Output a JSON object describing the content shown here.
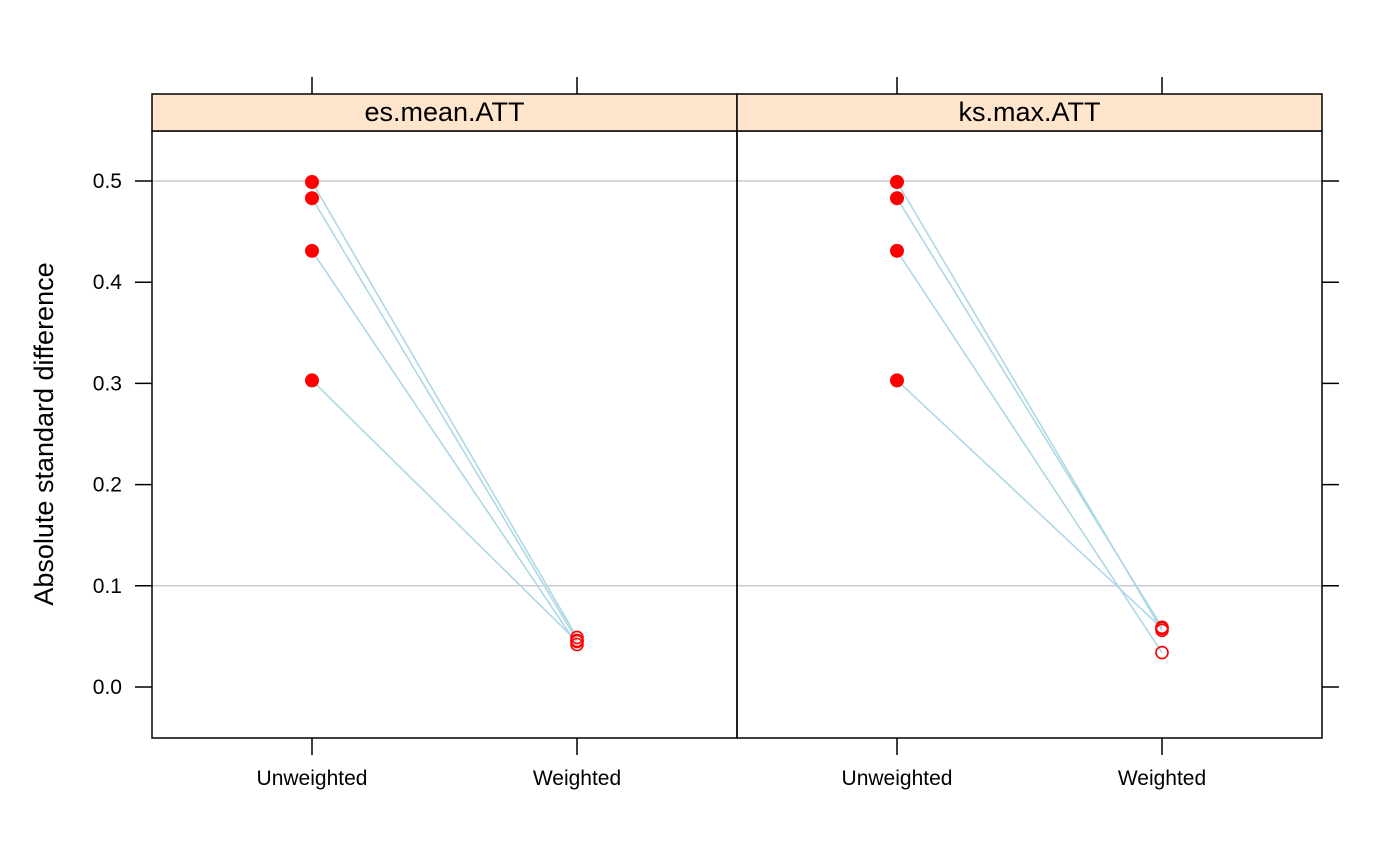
{
  "chart_data": {
    "type": "scatter",
    "ylabel": "Absolute standard difference",
    "xlabel": "",
    "categories": [
      "Unweighted",
      "Weighted"
    ],
    "ylim": [
      -0.05,
      0.55
    ],
    "yticks": [
      "0.0",
      "0.1",
      "0.2",
      "0.3",
      "0.4",
      "0.5"
    ],
    "reference_lines": [
      0.1,
      0.5
    ],
    "panels": [
      {
        "title": "es.mean.ATT",
        "lines": [
          {
            "unweighted": 0.499,
            "weighted": 0.049
          },
          {
            "unweighted": 0.483,
            "weighted": 0.046
          },
          {
            "unweighted": 0.431,
            "weighted": 0.042
          },
          {
            "unweighted": 0.303,
            "weighted": 0.045
          }
        ]
      },
      {
        "title": "ks.max.ATT",
        "lines": [
          {
            "unweighted": 0.499,
            "weighted": 0.056
          },
          {
            "unweighted": 0.483,
            "weighted": 0.059
          },
          {
            "unweighted": 0.431,
            "weighted": 0.034
          },
          {
            "unweighted": 0.303,
            "weighted": 0.058
          }
        ]
      }
    ],
    "colors": {
      "line": "#add8e6",
      "point": "#ff0000",
      "reference": "#cccccc",
      "strip": "#ffe5cc"
    }
  }
}
